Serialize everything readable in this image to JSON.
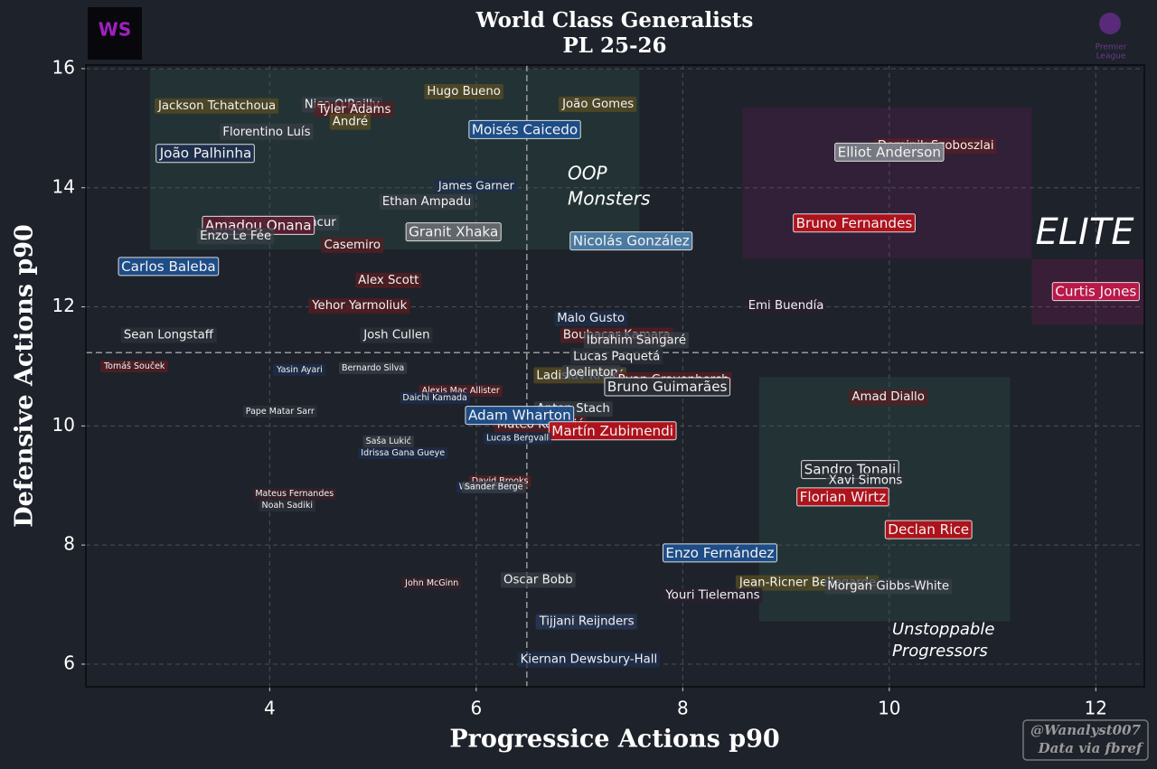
{
  "chart_data": {
    "type": "scatter",
    "title": "World Class Generalists",
    "subtitle": "PL 25-26",
    "x_label": "Progressice Actions p90",
    "y_label": "Defensive Actions p90",
    "xlim": [
      2.22,
      12.47
    ],
    "ylim": [
      5.62,
      16.06
    ],
    "xticks": [
      4,
      6,
      8,
      10,
      12
    ],
    "yticks": [
      6,
      8,
      10,
      12,
      14,
      16
    ],
    "grid": true,
    "vline": 6.49,
    "hline": 11.23,
    "zones": [
      {
        "x": [
          2.84,
          7.58
        ],
        "y": [
          12.96,
          15.99
        ],
        "color": "#2b4a42"
      },
      {
        "x": [
          8.58,
          11.38
        ],
        "y": [
          12.81,
          15.35
        ],
        "color": "#4a2048"
      },
      {
        "x": [
          11.38,
          12.47
        ],
        "y": [
          11.7,
          12.8
        ],
        "color": "#5a1a48"
      },
      {
        "x": [
          8.74,
          11.17
        ],
        "y": [
          6.72,
          10.82
        ],
        "color": "#2b4a42"
      }
    ],
    "annotations": [
      {
        "lines": [
          "OOP",
          "Monsters"
        ]
      },
      {
        "lines": [
          "ELITE"
        ]
      },
      {
        "lines": [
          "Unstoppable",
          "Progressors"
        ]
      }
    ],
    "logo_text": "WS",
    "league_logo": [
      "Premier",
      "League"
    ],
    "credit": [
      "@Wanalyst007",
      "Data via fbref"
    ],
    "points": [
      {
        "label": "Jackson Tchatchoua",
        "x": 3.49,
        "y": 15.38,
        "color": "#5a4e22",
        "size": 14
      },
      {
        "label": "Nico O'Reilly",
        "x": 4.7,
        "y": 15.4,
        "color": "#3a3f47",
        "size": 14
      },
      {
        "label": "Tyler Adams",
        "x": 4.82,
        "y": 15.32,
        "color": "#5a1e22",
        "size": 14
      },
      {
        "label": "Hugo Bueno",
        "x": 5.88,
        "y": 15.62,
        "color": "#5a4e22",
        "size": 14
      },
      {
        "label": "João Gomes",
        "x": 7.18,
        "y": 15.41,
        "color": "#5a4e22",
        "size": 14
      },
      {
        "label": "André",
        "x": 4.78,
        "y": 15.11,
        "color": "#5a4e22",
        "size": 14
      },
      {
        "label": "Florentino Luís",
        "x": 3.97,
        "y": 14.94,
        "color": "#3a3f47",
        "size": 14
      },
      {
        "label": "Moisés Caicedo",
        "x": 6.47,
        "y": 14.97,
        "color": "#1e4f8c",
        "size": 16
      },
      {
        "label": "João Palhinha",
        "x": 3.38,
        "y": 14.57,
        "color": "#1d2f4d",
        "size": 16
      },
      {
        "label": "Dominik Szoboszlai",
        "x": 10.45,
        "y": 14.71,
        "color": "#5a1e22",
        "size": 14
      },
      {
        "label": "Elliot Anderson",
        "x": 10.0,
        "y": 14.59,
        "color": "#7a7e86",
        "size": 16
      },
      {
        "label": "James Garner",
        "x": 6.0,
        "y": 14.03,
        "color": "#1d2f4d",
        "size": 13
      },
      {
        "label": "Ethan Ampadu",
        "x": 5.52,
        "y": 13.77,
        "color": "#3a3f47",
        "size": 14
      },
      {
        "label": "Rodrigo Bentancur",
        "x": 4.1,
        "y": 13.42,
        "color": "#3a3f47",
        "size": 14
      },
      {
        "label": "Amadou Onana",
        "x": 3.89,
        "y": 13.36,
        "color": "#5a1e30",
        "size": 16
      },
      {
        "label": "Enzo Le Fée",
        "x": 3.67,
        "y": 13.19,
        "color": "#3a3f47",
        "size": 14
      },
      {
        "label": "Granit Xhaka",
        "x": 5.78,
        "y": 13.25,
        "color": "#666a70",
        "size": 16
      },
      {
        "label": "Nicolás González",
        "x": 7.5,
        "y": 13.1,
        "color": "#4d7ea8",
        "size": 16
      },
      {
        "label": "Bruno Fernandes",
        "x": 9.66,
        "y": 13.4,
        "color": "#b5121b",
        "size": 16
      },
      {
        "label": "Casemiro",
        "x": 4.8,
        "y": 13.04,
        "color": "#5a1e22",
        "size": 14
      },
      {
        "label": "Carlos Baleba",
        "x": 3.02,
        "y": 12.67,
        "color": "#1e4f8c",
        "size": 16
      },
      {
        "label": "Alex Scott",
        "x": 5.15,
        "y": 12.45,
        "color": "#5a1e22",
        "size": 14
      },
      {
        "label": "Curtis Jones",
        "x": 12.0,
        "y": 12.25,
        "color": "#c0184a",
        "size": 16
      },
      {
        "label": "Yehor Yarmoliuk",
        "x": 4.87,
        "y": 12.02,
        "color": "#5a1e22",
        "size": 14
      },
      {
        "label": "Emi Buendía",
        "x": 9.0,
        "y": 12.02,
        "color": "#2a2030",
        "size": 14
      },
      {
        "label": "Malo Gusto",
        "x": 7.11,
        "y": 11.81,
        "color": "#1d2f4d",
        "size": 14
      },
      {
        "label": "Sean Longstaff",
        "x": 3.02,
        "y": 11.53,
        "color": "#2e323a",
        "size": 14
      },
      {
        "label": "Josh Cullen",
        "x": 5.23,
        "y": 11.53,
        "color": "#2e323a",
        "size": 14
      },
      {
        "label": "Boubacar Kamara",
        "x": 7.36,
        "y": 11.53,
        "color": "#5a1e22",
        "size": 14
      },
      {
        "label": "Ibrahim Sangaré",
        "x": 7.55,
        "y": 11.44,
        "color": "#3a3f47",
        "size": 14
      },
      {
        "label": "Lucas Paquetá",
        "x": 7.36,
        "y": 11.17,
        "color": "#2e323a",
        "size": 14
      },
      {
        "label": "Tomáš Souček",
        "x": 2.69,
        "y": 11.0,
        "color": "#5a1e22",
        "size": 10
      },
      {
        "label": "Yasin Ayari",
        "x": 4.29,
        "y": 10.94,
        "color": "#1d2f4d",
        "size": 10
      },
      {
        "label": "Bernardo Silva",
        "x": 5.0,
        "y": 10.97,
        "color": "#3a3f47",
        "size": 10
      },
      {
        "label": "Ladislav Krejčí",
        "x": 7.0,
        "y": 10.85,
        "color": "#5a4e22",
        "size": 14
      },
      {
        "label": "Joelinton",
        "x": 7.12,
        "y": 10.9,
        "color": "#3a3f47",
        "size": 14
      },
      {
        "label": "Ryan Gravenberch",
        "x": 7.91,
        "y": 10.78,
        "color": "#5a1e22",
        "size": 14
      },
      {
        "label": "Bruno Guimarães",
        "x": 7.85,
        "y": 10.65,
        "color": "#2a2e36",
        "size": 16
      },
      {
        "label": "Amad Diallo",
        "x": 9.99,
        "y": 10.49,
        "color": "#5a1e22",
        "size": 14
      },
      {
        "label": "Alexis Mac Allister",
        "x": 5.85,
        "y": 10.59,
        "color": "#5a1e22",
        "size": 10
      },
      {
        "label": "Daichi Kamada",
        "x": 5.6,
        "y": 10.47,
        "color": "#1d2f4d",
        "size": 10
      },
      {
        "label": "Anton Stach",
        "x": 6.94,
        "y": 10.29,
        "color": "#3a3f47",
        "size": 14
      },
      {
        "label": "Mateo Kovačić",
        "x": 6.62,
        "y": 10.03,
        "color": "#5a1e22",
        "size": 14
      },
      {
        "label": "Adam Wharton",
        "x": 6.42,
        "y": 10.17,
        "color": "#1e4f8c",
        "size": 16
      },
      {
        "label": "Martín Zubimendi",
        "x": 7.32,
        "y": 9.91,
        "color": "#b5121b",
        "size": 16
      },
      {
        "label": "Pape Matar Sarr",
        "x": 4.1,
        "y": 10.24,
        "color": "#2e323a",
        "size": 10
      },
      {
        "label": "Lucas Bergvall",
        "x": 6.4,
        "y": 9.79,
        "color": "#1d2f4d",
        "size": 10
      },
      {
        "label": "Saša Lukić",
        "x": 5.15,
        "y": 9.74,
        "color": "#3a3f47",
        "size": 10
      },
      {
        "label": "Idrissa Gana Gueye",
        "x": 5.29,
        "y": 9.54,
        "color": "#1d2f4d",
        "size": 10
      },
      {
        "label": "Sandro Tonali",
        "x": 9.62,
        "y": 9.26,
        "color": "#2a2e36",
        "size": 16
      },
      {
        "label": "Xavi Simons",
        "x": 9.77,
        "y": 9.09,
        "color": "#2e323a",
        "size": 14
      },
      {
        "label": "David Brooks",
        "x": 6.23,
        "y": 9.07,
        "color": "#5a1e22",
        "size": 10
      },
      {
        "label": "Wataru Endo",
        "x": 6.1,
        "y": 8.97,
        "color": "#1d2f4d",
        "size": 10
      },
      {
        "label": "Sander Berge",
        "x": 6.17,
        "y": 8.97,
        "color": "#3a3f47",
        "size": 10
      },
      {
        "label": "Florian Wirtz",
        "x": 9.55,
        "y": 8.8,
        "color": "#b5121b",
        "size": 16
      },
      {
        "label": "Mateus Fernandes",
        "x": 4.24,
        "y": 8.86,
        "color": "#3a2228",
        "size": 10
      },
      {
        "label": "Noah Sadiki",
        "x": 4.17,
        "y": 8.66,
        "color": "#2e323a",
        "size": 10
      },
      {
        "label": "Declan Rice",
        "x": 10.38,
        "y": 8.25,
        "color": "#b5121b",
        "size": 16
      },
      {
        "label": "Enzo Fernández",
        "x": 8.36,
        "y": 7.86,
        "color": "#1e4f8c",
        "size": 16
      },
      {
        "label": "Oscar Bobb",
        "x": 6.6,
        "y": 7.42,
        "color": "#3a3f47",
        "size": 14
      },
      {
        "label": "John McGinn",
        "x": 5.57,
        "y": 7.36,
        "color": "#3a2228",
        "size": 10
      },
      {
        "label": "Jean-Ricner Bellegarde",
        "x": 9.21,
        "y": 7.37,
        "color": "#5a4e22",
        "size": 14
      },
      {
        "label": "Morgan Gibbs-White",
        "x": 9.99,
        "y": 7.31,
        "color": "#3a3f47",
        "size": 14
      },
      {
        "label": "Youri Tielemans",
        "x": 8.29,
        "y": 7.16,
        "color": "#2a2030",
        "size": 14
      },
      {
        "label": "Tijjani Reijnders",
        "x": 7.07,
        "y": 6.72,
        "color": "#2a3a5a",
        "size": 14
      },
      {
        "label": "Kiernan Dewsbury-Hall",
        "x": 7.09,
        "y": 6.08,
        "color": "#1d2f4d",
        "size": 14
      }
    ]
  }
}
